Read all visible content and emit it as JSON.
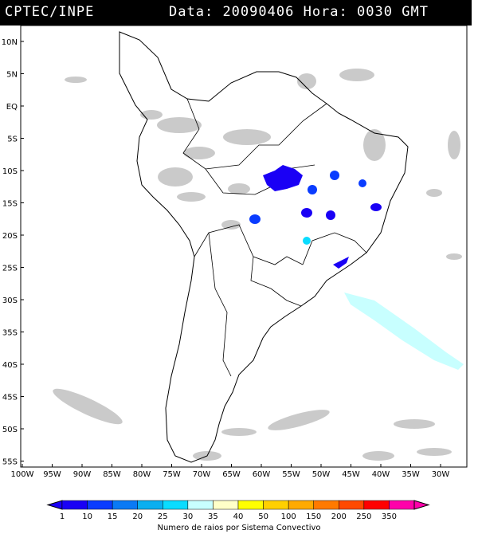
{
  "header": {
    "source": "CPTEC/INPE",
    "data_label": "Data:",
    "date": "20090406",
    "hora_label": "Hora:",
    "time": "0030",
    "timezone": "GMT"
  },
  "map": {
    "lat_labels": [
      "10N",
      "5N",
      "EQ",
      "5S",
      "10S",
      "15S",
      "20S",
      "25S",
      "30S",
      "35S",
      "40S",
      "45S",
      "50S",
      "55S"
    ],
    "lon_labels": [
      "100W",
      "95W",
      "90W",
      "85W",
      "80W",
      "75W",
      "70W",
      "65W",
      "60W",
      "55W",
      "50W",
      "45W",
      "40W",
      "35W",
      "30W"
    ],
    "colors": {
      "land_outline": "#000000",
      "cloud": "#c8c8c8",
      "ocean": "#ffffff"
    }
  },
  "legend": {
    "ticks": [
      "1",
      "10",
      "15",
      "20",
      "25",
      "30",
      "35",
      "40",
      "50",
      "100",
      "150",
      "200",
      "250",
      "350"
    ],
    "colors": [
      "#1a00f5",
      "#0a3cff",
      "#0a7af5",
      "#0aaff0",
      "#0adcff",
      "#c8ffff",
      "#ffffc8",
      "#ffff00",
      "#ffd000",
      "#ffaa00",
      "#ff7a00",
      "#ff4a00",
      "#ff0000",
      "#ff00aa"
    ],
    "caption": "Numero de raios por Sistema Convectivo"
  }
}
